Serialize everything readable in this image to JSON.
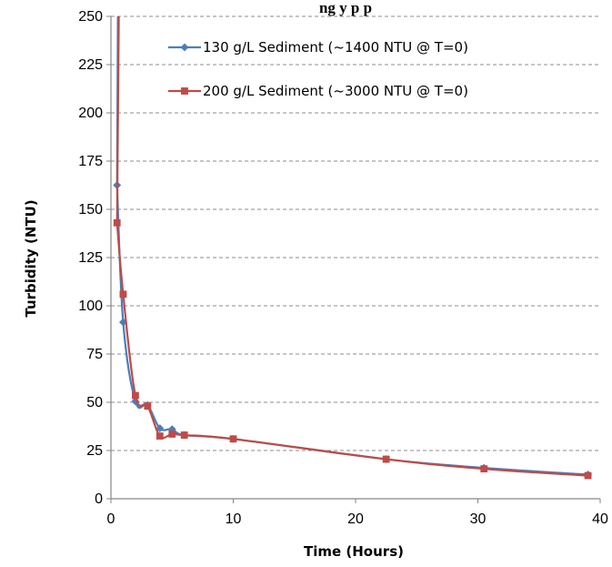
{
  "chart_data": {
    "type": "line",
    "title": "ng         y p   p",
    "xlabel": "Time (Hours)",
    "ylabel": "Turbidity (NTU)",
    "xlim": [
      0,
      40
    ],
    "ylim": [
      0,
      250
    ],
    "xticks": [
      0,
      10,
      20,
      30,
      40
    ],
    "yticks": [
      0,
      25,
      50,
      75,
      100,
      125,
      150,
      175,
      200,
      225,
      250
    ],
    "grid": "horizontal-dashed",
    "legend_position": "top-right",
    "series": [
      {
        "name": "130 g/L Sediment (~1400 NTU @ T=0)",
        "color": "#4a7ebb",
        "marker": "diamond",
        "x": [
          0.5,
          1,
          2,
          3,
          4,
          5,
          6,
          10,
          22.5,
          30.5,
          39
        ],
        "y": [
          162.5,
          91.5,
          50.5,
          48.5,
          36.5,
          36,
          33,
          31,
          20.5,
          16,
          12.5
        ]
      },
      {
        "name": "200 g/L Sediment (~3000 NTU @ T=0)",
        "color": "#be4b48",
        "marker": "square",
        "x": [
          0.5,
          1,
          2,
          3,
          4,
          5,
          6,
          10,
          22.5,
          30.5,
          39
        ],
        "y": [
          143,
          106,
          53.5,
          48,
          32.5,
          33.5,
          33,
          31,
          20.5,
          15.5,
          12
        ]
      }
    ]
  }
}
